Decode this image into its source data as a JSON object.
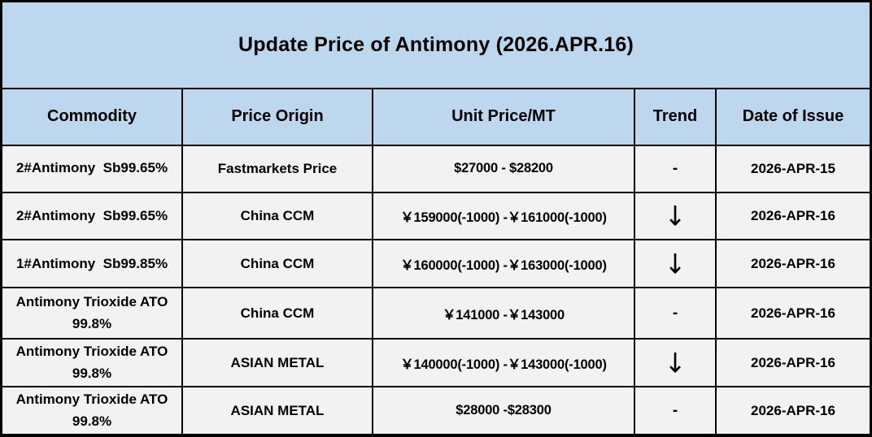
{
  "title": "Update Price of Antimony (2026.APR.16)",
  "colors": {
    "band_bg": "#BDD7EE",
    "row_bg": "#F2F2F2",
    "border": "#000000",
    "text": "#000000"
  },
  "table": {
    "columns": {
      "commodity": "Commodity",
      "origin": "Price Origin",
      "price": "Unit Price/MT",
      "trend": "Trend",
      "date": "Date of Issue"
    },
    "rows": [
      {
        "commodity": "2#Antimony  Sb99.65%",
        "origin": "Fastmarkets Price",
        "price": "$27000 - $28200",
        "trend": "-",
        "trend_meaning": "flat",
        "date": "2026-APR-15"
      },
      {
        "commodity": "2#Antimony  Sb99.65%",
        "origin": "China CCM",
        "price": "￥159000(-1000) -￥161000(-1000)",
        "trend": "↓",
        "trend_meaning": "down",
        "date": "2026-APR-16"
      },
      {
        "commodity": "1#Antimony  Sb99.85%",
        "origin": "China CCM",
        "price": "￥160000(-1000) -￥163000(-1000)",
        "trend": "↓",
        "trend_meaning": "down",
        "date": "2026-APR-16"
      },
      {
        "commodity": "Antimony Trioxide ATO 99.8%",
        "origin": "China CCM",
        "price": "￥141000 -￥143000",
        "trend": "-",
        "trend_meaning": "flat",
        "date": "2026-APR-16"
      },
      {
        "commodity": "Antimony Trioxide ATO 99.8%",
        "origin": "ASIAN METAL",
        "price": "￥140000(-1000) -￥143000(-1000)",
        "trend": "↓",
        "trend_meaning": "down",
        "date": "2026-APR-16"
      },
      {
        "commodity": "Antimony Trioxide ATO 99.8%",
        "origin": "ASIAN METAL",
        "price": "$28000 -$28300",
        "trend": "-",
        "trend_meaning": "flat",
        "date": "2026-APR-16"
      }
    ]
  }
}
